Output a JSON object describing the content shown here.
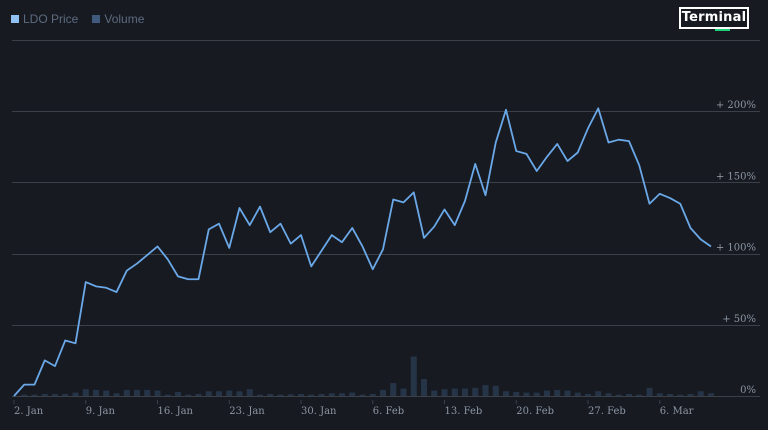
{
  "brand": {
    "label": "Terminal",
    "accent_color": "#1fd07a"
  },
  "colors": {
    "background": "#171a21",
    "grid": "#3a3f48",
    "price_line": "#6aa8e8",
    "volume_bar": "#263448",
    "tick_label": "#8c96a3"
  },
  "chart_data": {
    "type": "line",
    "legend_position": "top-left",
    "grid": true,
    "title": "",
    "xlabel": "",
    "ylabel": "",
    "x_ticks": [
      "2. Jan",
      "9. Jan",
      "16. Jan",
      "23. Jan",
      "30. Jan",
      "6. Feb",
      "13. Feb",
      "20. Feb",
      "27. Feb",
      "6. Mar"
    ],
    "y_ticks": [
      "+ 200%",
      "+ 150%",
      "+ 100%",
      "+ 50%",
      "0%"
    ],
    "y_tick_values": [
      200,
      150,
      100,
      50,
      0
    ],
    "ylim": [
      0,
      250
    ],
    "series": [
      {
        "name": "LDO Price",
        "unit": "%",
        "values": [
          0,
          8,
          8,
          25,
          21,
          39,
          37,
          80,
          77,
          76,
          73,
          88,
          93,
          99,
          105,
          96,
          84,
          82,
          82,
          117,
          121,
          104,
          132,
          120,
          133,
          115,
          121,
          107,
          113,
          91,
          102,
          113,
          108,
          118,
          105,
          89,
          103,
          138,
          136,
          143,
          111,
          119,
          131,
          120,
          137,
          163,
          141,
          178,
          201,
          172,
          170,
          158,
          168,
          177,
          165,
          171,
          188,
          202,
          178,
          180,
          179,
          162,
          135,
          142,
          139,
          135,
          118,
          110,
          105
        ]
      },
      {
        "name": "Volume",
        "values": [
          0,
          1,
          1,
          1.5,
          1.5,
          1.5,
          2.5,
          5,
          4.5,
          4,
          2,
          4.5,
          4.5,
          4.5,
          4,
          1,
          3,
          1,
          1.5,
          3.5,
          3.5,
          4,
          3.5,
          5,
          1,
          1.5,
          1,
          1.2,
          1.5,
          1,
          1.5,
          2,
          2,
          2.5,
          1,
          1.5,
          4.5,
          9.5,
          5.5,
          29,
          12.5,
          4,
          5,
          5.5,
          5.5,
          6,
          8,
          7.5,
          3.5,
          3,
          2.5,
          2.5,
          4,
          4.5,
          4,
          2.5,
          1.5,
          3.5,
          2,
          1,
          1.5,
          1,
          6,
          2,
          1.5,
          1,
          1.5,
          3.5,
          2
        ]
      }
    ]
  }
}
